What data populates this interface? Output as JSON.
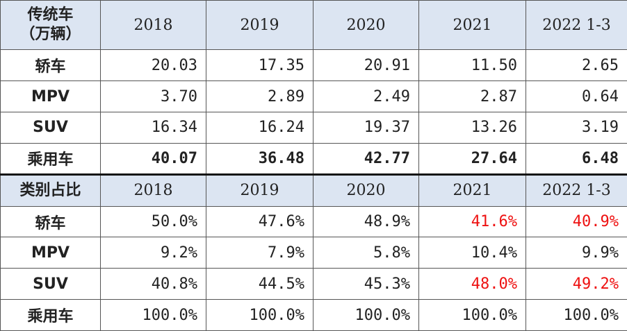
{
  "section1": {
    "header": [
      "传统车\n（万辆）",
      "2018",
      "2019",
      "2020",
      "2021",
      "2022 1-3"
    ],
    "rows": [
      {
        "label": "轿车",
        "values": [
          "20.03",
          "17.35",
          "20.91",
          "11.50",
          "2.65"
        ]
      },
      {
        "label": "MPV",
        "values": [
          "3.70",
          "2.89",
          "2.49",
          "2.87",
          "0.64"
        ]
      },
      {
        "label": "SUV",
        "values": [
          "16.34",
          "16.24",
          "19.37",
          "13.26",
          "3.19"
        ]
      },
      {
        "label": "乘用车",
        "values": [
          "40.07",
          "36.48",
          "42.77",
          "27.64",
          "6.48"
        ]
      }
    ]
  },
  "section2": {
    "header": [
      "类别占比",
      "2018",
      "2019",
      "2020",
      "2021",
      "2022 1-3"
    ],
    "rows": [
      {
        "label": "轿车",
        "values": [
          "50.0%",
          "47.6%",
          "48.9%",
          "41.6%",
          "40.9%"
        ]
      },
      {
        "label": "MPV",
        "values": [
          "9.2%",
          "7.9%",
          "5.8%",
          "10.4%",
          "9.9%"
        ]
      },
      {
        "label": "SUV",
        "values": [
          "40.8%",
          "44.5%",
          "45.3%",
          "48.0%",
          "49.2%"
        ]
      },
      {
        "label": "乘用车",
        "values": [
          "100.0%",
          "100.0%",
          "100.0%",
          "100.0%",
          "100.0%"
        ]
      }
    ]
  },
  "colors": {
    "header_bg": "#dce5f2",
    "highlight_red": "#ee1111",
    "text": "#222222"
  }
}
